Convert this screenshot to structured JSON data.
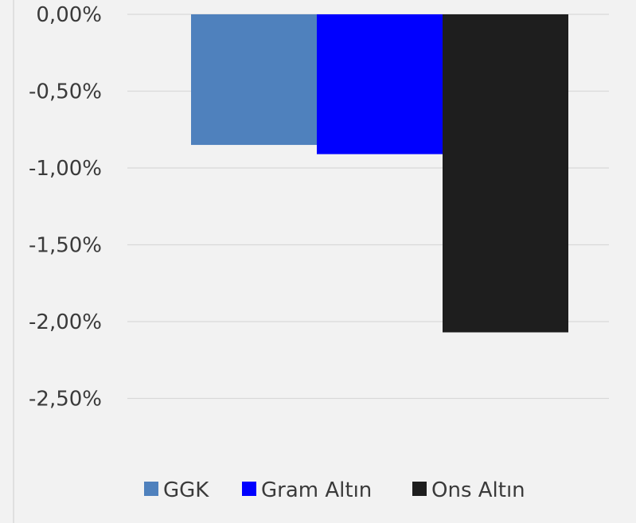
{
  "chart_data": {
    "type": "bar",
    "title": "",
    "xlabel": "",
    "ylabel": "",
    "categories": [
      ""
    ],
    "series": [
      {
        "name": "GGK",
        "values": [
          -0.85
        ],
        "color": "#4f81bd"
      },
      {
        "name": "Gram Altın",
        "values": [
          -0.91
        ],
        "color": "#0000ff"
      },
      {
        "name": "Ons Altın",
        "values": [
          -2.07
        ],
        "color": "#1e1e1e"
      }
    ],
    "y_ticks": [
      {
        "value": 0,
        "label": "0,00%"
      },
      {
        "value": -0.5,
        "label": "-0,50%"
      },
      {
        "value": -1.0,
        "label": "-1,00%"
      },
      {
        "value": -1.5,
        "label": "-1,50%"
      },
      {
        "value": -2.0,
        "label": "-2,00%"
      },
      {
        "value": -2.5,
        "label": "-2,50%"
      }
    ],
    "ylim": [
      -2.5,
      0
    ],
    "grid": true,
    "legend_position": "bottom",
    "background_color": "#f2f2f2",
    "gridline_color": "#d9d9d9"
  }
}
